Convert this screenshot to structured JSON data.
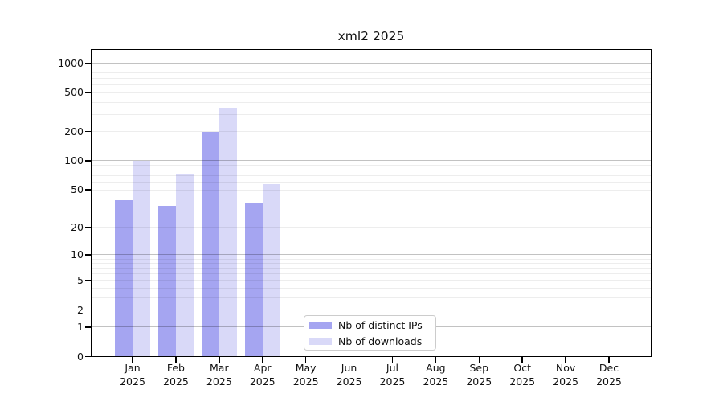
{
  "chart_data": {
    "type": "bar",
    "title": "xml2 2025",
    "y_scale": "log10(1+x)",
    "ylim": [
      0,
      1400
    ],
    "grid": "horizontal",
    "legend_position": "lower center",
    "y_ticks": [
      0,
      1,
      2,
      5,
      10,
      20,
      50,
      100,
      200,
      500,
      1000
    ],
    "months": [
      "Jan",
      "Feb",
      "Mar",
      "Apr",
      "May",
      "Jun",
      "Jul",
      "Aug",
      "Sep",
      "Oct",
      "Nov",
      "Dec"
    ],
    "year": "2025",
    "series": [
      {
        "name": "Nb of distinct IPs",
        "color": "#a5a5f1",
        "values": [
          39,
          34,
          200,
          37,
          0,
          0,
          0,
          0,
          0,
          0,
          0,
          0
        ]
      },
      {
        "name": "Nb of downloads",
        "color": "#d9d9f8",
        "values": [
          100,
          72,
          350,
          57,
          0,
          0,
          0,
          0,
          0,
          0,
          0,
          0
        ]
      }
    ]
  }
}
